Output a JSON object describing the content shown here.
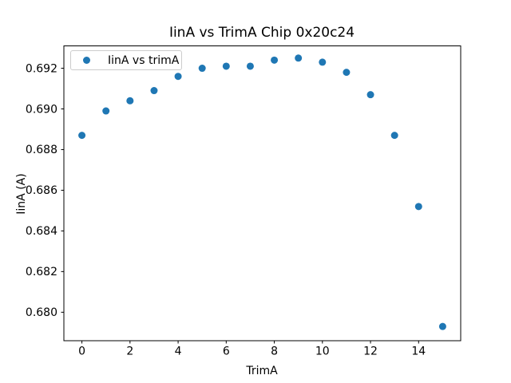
{
  "chart_data": {
    "type": "scatter",
    "title": "IinA vs TrimA Chip 0x20c24",
    "xlabel": "TrimA",
    "ylabel": "IinA (A)",
    "legend": [
      {
        "label": "IinA vs trimA"
      }
    ],
    "legend_position": "upper left",
    "marker_color": "#1f77b4",
    "axis_color": "#000000",
    "background_color": "#ffffff",
    "grid": false,
    "x": [
      0,
      1,
      2,
      3,
      4,
      5,
      6,
      7,
      8,
      9,
      10,
      11,
      12,
      13,
      14,
      15
    ],
    "y": [
      0.6887,
      0.6899,
      0.6904,
      0.6909,
      0.6916,
      0.692,
      0.6921,
      0.6921,
      0.6924,
      0.6925,
      0.6923,
      0.6918,
      0.6907,
      0.6887,
      0.6852,
      0.6793
    ],
    "xtick_values": [
      0,
      2,
      4,
      6,
      8,
      10,
      12,
      14
    ],
    "xtick_labels": [
      "0",
      "2",
      "4",
      "6",
      "8",
      "10",
      "12",
      "14"
    ],
    "ytick_values": [
      0.68,
      0.682,
      0.684,
      0.686,
      0.688,
      0.69,
      0.692
    ],
    "ytick_labels": [
      "0.680",
      "0.682",
      "0.684",
      "0.686",
      "0.688",
      "0.690",
      "0.692"
    ],
    "xlim": [
      -0.75,
      15.75
    ],
    "ylim": [
      0.6786,
      0.6931
    ]
  }
}
